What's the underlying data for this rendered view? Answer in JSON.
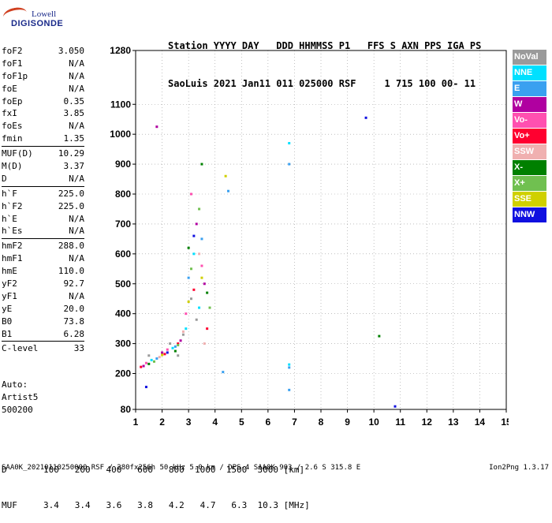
{
  "logo": {
    "line1": "Lowell",
    "line2": "DIGISONDE"
  },
  "header": {
    "line1": "Station YYYY DAY   DDD HHMMSS P1   FFS S AXN PPS IGA PS",
    "line2": "SaoLuis 2021 Jan11 011 025000 RSF     1 715 100 00- 11"
  },
  "params": [
    {
      "k": "foF2",
      "v": "3.050"
    },
    {
      "k": "foF1",
      "v": "N/A"
    },
    {
      "k": "foF1p",
      "v": "N/A"
    },
    {
      "k": "foE",
      "v": "N/A"
    },
    {
      "k": "foEp",
      "v": "0.35"
    },
    {
      "k": "fxI",
      "v": "3.85"
    },
    {
      "k": "foEs",
      "v": "N/A"
    },
    {
      "k": "fmin",
      "v": "1.35"
    },
    {
      "k": "MUF(D)",
      "v": "10.29",
      "sep": true
    },
    {
      "k": "M(D)",
      "v": "3.37"
    },
    {
      "k": "D",
      "v": "N/A"
    },
    {
      "k": "h`F",
      "v": "225.0",
      "sep": true
    },
    {
      "k": "h`F2",
      "v": "225.0"
    },
    {
      "k": "h`E",
      "v": "N/A"
    },
    {
      "k": "h`Es",
      "v": "N/A"
    },
    {
      "k": "hmF2",
      "v": "288.0",
      "sep": true
    },
    {
      "k": "hmF1",
      "v": "N/A"
    },
    {
      "k": "hmE",
      "v": "110.0"
    },
    {
      "k": "yF2",
      "v": "92.7"
    },
    {
      "k": "yF1",
      "v": "N/A"
    },
    {
      "k": "yE",
      "v": "20.0"
    },
    {
      "k": "B0",
      "v": "73.8"
    },
    {
      "k": "B1",
      "v": "6.28"
    },
    {
      "k": "C-level",
      "v": "33",
      "sep": true
    }
  ],
  "auto": {
    "label": "Auto:",
    "line2": "Artist5",
    "line3": "500200"
  },
  "muf_table": {
    "d_label": "D",
    "muf_label": "MUF",
    "distances": [
      "100",
      "200",
      "400",
      "600",
      "800",
      "1000",
      "1500",
      "3000"
    ],
    "d_unit": "[km]",
    "mufs": [
      "3.4",
      "3.4",
      "3.6",
      "3.8",
      "4.2",
      "4.7",
      "6.3",
      "10.3"
    ],
    "muf_unit": "[MHz]"
  },
  "footer": {
    "left": "SAA0K_20210110250000.RSF / 280fx256h 50 kHz 5.0 km / DPS-4 SAA0K 903 / 2.6 S 315.8 E",
    "right": "Ion2Png 1.3.17"
  },
  "legend": [
    {
      "label": "NoVal",
      "color": "#9a9a9a"
    },
    {
      "label": "NNE",
      "color": "#00e0ff"
    },
    {
      "label": "E",
      "color": "#3aa0f0"
    },
    {
      "label": "W",
      "color": "#b000a0"
    },
    {
      "label": "Vo-",
      "color": "#ff50b0"
    },
    {
      "label": "Vo+",
      "color": "#ff0030"
    },
    {
      "label": "SSW",
      "color": "#f0b0b0"
    },
    {
      "label": "X-",
      "color": "#008000"
    },
    {
      "label": "X+",
      "color": "#70c050"
    },
    {
      "label": "SSE",
      "color": "#d0d000"
    },
    {
      "label": "NNW",
      "color": "#1010e0"
    }
  ],
  "chart_data": {
    "type": "scatter",
    "xlim": [
      1,
      15
    ],
    "ylim": [
      80,
      1280
    ],
    "xticks": [
      1,
      2,
      3,
      4,
      5,
      6,
      7,
      8,
      9,
      10,
      11,
      12,
      13,
      14,
      15
    ],
    "yticks": [
      80,
      200,
      300,
      400,
      500,
      600,
      700,
      800,
      900,
      1000,
      1100,
      1280
    ],
    "grid": true,
    "series": [
      {
        "color": "#9a9a9a",
        "points": [
          [
            1.5,
            260
          ],
          [
            2.3,
            300
          ],
          [
            2.8,
            330
          ],
          [
            3.1,
            450
          ],
          [
            3.3,
            380
          ],
          [
            2.6,
            260
          ]
        ]
      },
      {
        "color": "#00e0ff",
        "points": [
          [
            1.6,
            245
          ],
          [
            2.4,
            285
          ],
          [
            2.9,
            350
          ],
          [
            3.2,
            600
          ],
          [
            3.4,
            420
          ],
          [
            6.8,
            970
          ],
          [
            6.8,
            230
          ]
        ]
      },
      {
        "color": "#3aa0f0",
        "points": [
          [
            1.8,
            250
          ],
          [
            2.5,
            290
          ],
          [
            3.0,
            520
          ],
          [
            3.5,
            650
          ],
          [
            6.8,
            900
          ],
          [
            6.8,
            220
          ],
          [
            4.5,
            810
          ],
          [
            4.3,
            205
          ],
          [
            6.8,
            145
          ]
        ]
      },
      {
        "color": "#b000a0",
        "points": [
          [
            1.3,
            225
          ],
          [
            2.0,
            270
          ],
          [
            2.7,
            310
          ],
          [
            3.3,
            700
          ],
          [
            3.6,
            500
          ],
          [
            1.8,
            1025
          ]
        ]
      },
      {
        "color": "#ff50b0",
        "points": [
          [
            1.4,
            235
          ],
          [
            2.2,
            280
          ],
          [
            2.9,
            400
          ],
          [
            3.1,
            800
          ],
          [
            3.5,
            560
          ]
        ]
      },
      {
        "color": "#ff0030",
        "points": [
          [
            1.2,
            222
          ],
          [
            2.1,
            265
          ],
          [
            2.6,
            300
          ],
          [
            3.2,
            480
          ],
          [
            3.7,
            350
          ]
        ]
      },
      {
        "color": "#f0b0b0",
        "points": [
          [
            1.9,
            255
          ],
          [
            2.8,
            340
          ],
          [
            3.4,
            600
          ],
          [
            3.6,
            300
          ]
        ]
      },
      {
        "color": "#008000",
        "points": [
          [
            1.5,
            232
          ],
          [
            2.5,
            275
          ],
          [
            3.0,
            620
          ],
          [
            3.5,
            900
          ],
          [
            3.7,
            470
          ],
          [
            10.2,
            325
          ]
        ]
      },
      {
        "color": "#70c050",
        "points": [
          [
            1.7,
            240
          ],
          [
            2.6,
            295
          ],
          [
            3.1,
            550
          ],
          [
            3.4,
            750
          ],
          [
            3.8,
            420
          ]
        ]
      },
      {
        "color": "#d0d000",
        "points": [
          [
            2.0,
            262
          ],
          [
            3.0,
            440
          ],
          [
            3.5,
            520
          ],
          [
            4.4,
            860
          ]
        ]
      },
      {
        "color": "#1010e0",
        "points": [
          [
            1.4,
            155
          ],
          [
            2.2,
            270
          ],
          [
            3.2,
            660
          ],
          [
            9.7,
            1055
          ],
          [
            10.8,
            90
          ]
        ]
      }
    ]
  }
}
